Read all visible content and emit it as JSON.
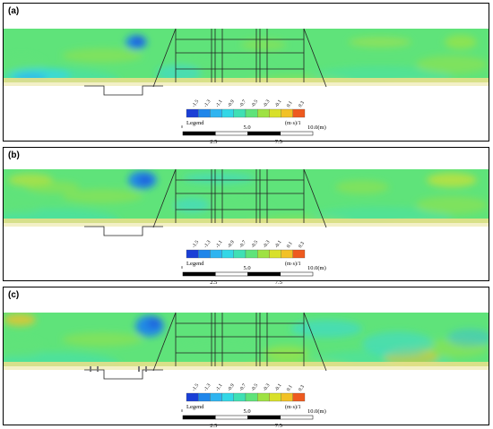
{
  "figure": {
    "panels": [
      {
        "id": "a",
        "label": "(a)"
      },
      {
        "id": "b",
        "label": "(b)"
      },
      {
        "id": "c",
        "label": "(c)"
      }
    ]
  },
  "chart_data": {
    "type": "heatmap",
    "colorbar": {
      "ticks": [
        "-1.5",
        "-1.3",
        "-1.1",
        "-0.9",
        "-0.7",
        "-0.5",
        "-0.3",
        "-0.1",
        "0.1",
        "0.3"
      ],
      "colors": [
        "#1a3fd6",
        "#1f86ea",
        "#2fb4f0",
        "#33d7e6",
        "#3fe0b4",
        "#5fe37a",
        "#9ee243",
        "#d8e02a",
        "#f2c126",
        "#ee5a1f"
      ],
      "legend_label": "Legend",
      "unit": "(m·s)/1"
    },
    "scale_bar": {
      "top_labels": [
        "5.0",
        "10.0(m)"
      ],
      "bottom_labels": [
        "0",
        "2.5",
        "7.5"
      ]
    }
  }
}
